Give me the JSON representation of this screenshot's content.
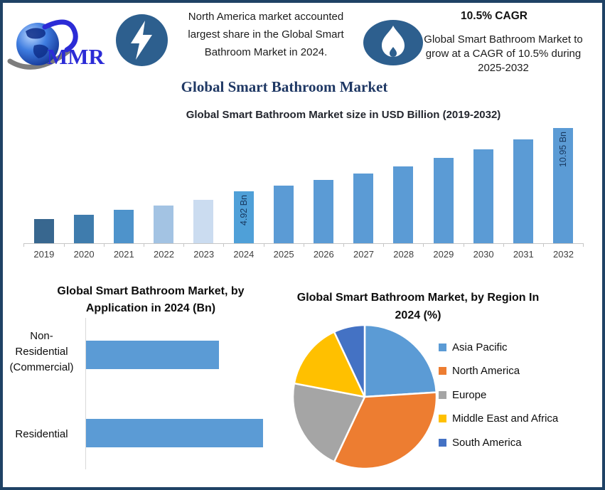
{
  "brand": {
    "name": "MMR"
  },
  "header": {
    "left_note": "North America market accounted largest share in the Global Smart Bathroom Market in 2024.",
    "cagr_headline": "10.5% CAGR",
    "right_note": "Global Smart Bathroom Market to grow at a CAGR of 10.5% during 2025-2032"
  },
  "page_title": "Global Smart Bathroom Market",
  "colors": {
    "border": "#1F4265",
    "icon_blue": "#2D5F8E",
    "title_navy": "#1F3864",
    "accent_bar": "#5B9BD5"
  },
  "chart_data": [
    {
      "type": "bar",
      "title": "Global Smart Bathroom Market size in USD Billion (2019-2032)",
      "unit": "USD Billion",
      "categories": [
        "2019",
        "2020",
        "2021",
        "2022",
        "2023",
        "2024",
        "2025",
        "2026",
        "2027",
        "2028",
        "2029",
        "2030",
        "2031",
        "2032"
      ],
      "values": [
        2.31,
        2.73,
        3.2,
        3.56,
        4.15,
        4.92,
        5.44,
        6.01,
        6.64,
        7.33,
        8.1,
        8.95,
        9.89,
        10.95
      ],
      "labeled_points": {
        "2024": "4.92 Bn",
        "2032": "10.95 Bn"
      },
      "note": "only 2024 and 2032 bars carry data labels; other values estimated from bar heights",
      "bar_colors": [
        "#38678F",
        "#3F7CAD",
        "#4E93CB",
        "#A3C3E3",
        "#CBDCF0",
        "#4FA0D8",
        "#5B9BD5",
        "#5B9BD5",
        "#5B9BD5",
        "#5B9BD5",
        "#5B9BD5",
        "#5B9BD5",
        "#5B9BD5",
        "#5B9BD5"
      ],
      "ylim": [
        0,
        11
      ],
      "grid": false,
      "legend": false
    },
    {
      "type": "bar",
      "orientation": "horizontal",
      "title": "Global Smart Bathroom Market, by Application in 2024 (Bn)",
      "categories": [
        [
          "Non-",
          "Residential",
          "(Commercial)"
        ],
        [
          "Residential"
        ]
      ],
      "values": [
        2.1,
        2.8
      ],
      "note": "no data labels shown; values estimated from relative bar lengths",
      "bar_color": "#5B9BD5",
      "grid": false,
      "legend": false
    },
    {
      "type": "pie",
      "title": "Global Smart Bathroom Market, by Region In 2024 (%)",
      "labels": [
        "Asia Pacific",
        "North America",
        "Europe",
        "Middle East and Africa",
        "South America"
      ],
      "values": [
        24,
        33,
        21,
        15,
        7
      ],
      "note": "percentages estimated from slice angles; no numeric labels shown",
      "colors": [
        "#5B9BD5",
        "#ED7D31",
        "#A5A5A5",
        "#FFC000",
        "#4472C4"
      ],
      "start_angle": "top",
      "direction": "clockwise",
      "legend_position": "right"
    }
  ]
}
